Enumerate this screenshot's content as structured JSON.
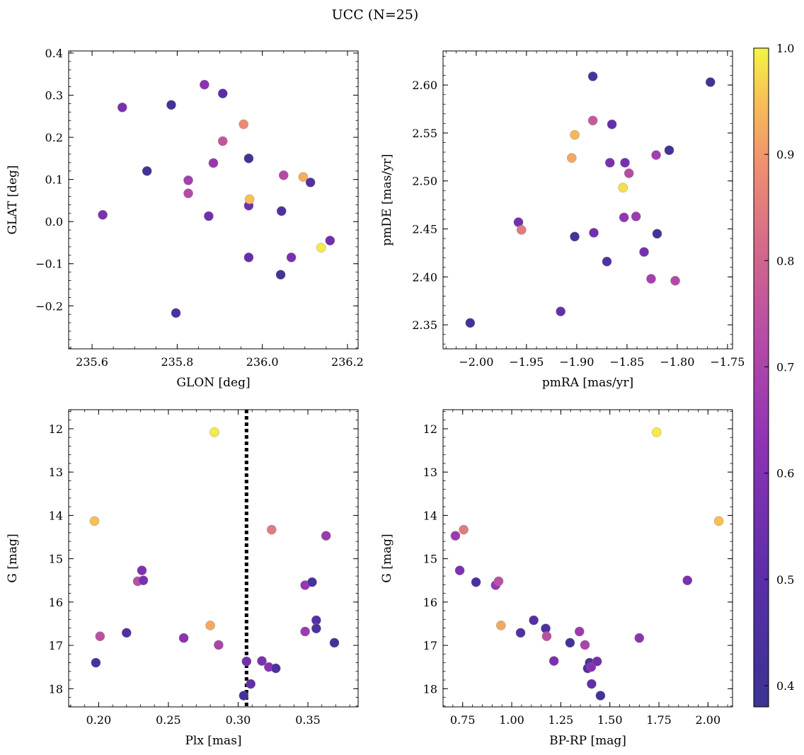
{
  "figure": {
    "title": "UCC (N=25)"
  },
  "colorbar": {
    "range": [
      0.38,
      1.0
    ],
    "ticks": [
      0.4,
      0.5,
      0.6,
      0.7,
      0.8,
      0.9,
      1.0
    ],
    "tick_labels": [
      "0.4",
      "0.5",
      "0.6",
      "0.7",
      "0.8",
      "0.9",
      "1.0"
    ],
    "colormap": "plasma",
    "stops": [
      [
        0.0,
        "#3b3492"
      ],
      [
        0.2,
        "#5b2ea8"
      ],
      [
        0.4,
        "#8e33b3"
      ],
      [
        0.55,
        "#b34aa8"
      ],
      [
        0.7,
        "#d46a8a"
      ],
      [
        0.82,
        "#ef8f70"
      ],
      [
        0.92,
        "#f8bf56"
      ],
      [
        1.0,
        "#f5f545"
      ]
    ]
  },
  "chart_data": [
    {
      "type": "scatter",
      "xlabel": "GLON [deg]",
      "ylabel": "GLAT [deg]",
      "xlim": [
        235.545,
        236.225
      ],
      "ylim": [
        -0.302,
        0.405
      ],
      "invert_y": false,
      "xticks": [
        235.6,
        235.8,
        236.0,
        236.2
      ],
      "xtick_labels": [
        "235.6",
        "235.8",
        "236.0",
        "236.2"
      ],
      "yticks": [
        -0.2,
        -0.1,
        0.0,
        0.1,
        0.2,
        0.3,
        0.4
      ],
      "ytick_labels": [
        "−0.2",
        "−0.1",
        "0.0",
        "0.1",
        "0.2",
        "0.3",
        "0.4"
      ],
      "x_minor_step": 0.05,
      "y_minor_step": 0.02,
      "points": [
        {
          "x": 235.625,
          "y": 0.016,
          "c": 0.58
        },
        {
          "x": 235.671,
          "y": 0.271,
          "c": 0.58
        },
        {
          "x": 235.729,
          "y": 0.12,
          "c": 0.41
        },
        {
          "x": 235.786,
          "y": 0.277,
          "c": 0.41
        },
        {
          "x": 235.797,
          "y": -0.217,
          "c": 0.45
        },
        {
          "x": 235.826,
          "y": 0.098,
          "c": 0.68
        },
        {
          "x": 235.826,
          "y": 0.067,
          "c": 0.72
        },
        {
          "x": 235.864,
          "y": 0.325,
          "c": 0.62
        },
        {
          "x": 235.874,
          "y": 0.013,
          "c": 0.55
        },
        {
          "x": 235.885,
          "y": 0.139,
          "c": 0.65
        },
        {
          "x": 235.907,
          "y": 0.304,
          "c": 0.5
        },
        {
          "x": 235.907,
          "y": 0.191,
          "c": 0.76
        },
        {
          "x": 235.956,
          "y": 0.231,
          "c": 0.88
        },
        {
          "x": 235.968,
          "y": 0.15,
          "c": 0.41
        },
        {
          "x": 235.968,
          "y": 0.038,
          "c": 0.56
        },
        {
          "x": 235.968,
          "y": -0.085,
          "c": 0.53
        },
        {
          "x": 235.97,
          "y": 0.053,
          "c": 0.95
        },
        {
          "x": 236.045,
          "y": 0.025,
          "c": 0.46
        },
        {
          "x": 236.043,
          "y": -0.126,
          "c": 0.41
        },
        {
          "x": 236.05,
          "y": 0.11,
          "c": 0.72
        },
        {
          "x": 236.068,
          "y": -0.085,
          "c": 0.58
        },
        {
          "x": 236.096,
          "y": 0.106,
          "c": 0.93
        },
        {
          "x": 236.113,
          "y": 0.093,
          "c": 0.47
        },
        {
          "x": 236.138,
          "y": -0.062,
          "c": 0.99
        },
        {
          "x": 236.159,
          "y": -0.045,
          "c": 0.56
        }
      ]
    },
    {
      "type": "scatter",
      "xlabel": "pmRA [mas/yr]",
      "ylabel": "pmDE [mas/yr]",
      "xlim": [
        -2.033,
        -1.745
      ],
      "ylim": [
        2.325,
        2.6355
      ],
      "invert_y": false,
      "xticks": [
        -2.0,
        -1.95,
        -1.9,
        -1.85,
        -1.8,
        -1.75
      ],
      "xtick_labels": [
        "−2.00",
        "−1.95",
        "−1.90",
        "−1.85",
        "−1.80",
        "−1.75"
      ],
      "yticks": [
        2.35,
        2.4,
        2.45,
        2.5,
        2.55,
        2.6
      ],
      "ytick_labels": [
        "2.35",
        "2.40",
        "2.45",
        "2.50",
        "2.55",
        "2.60"
      ],
      "x_minor_step": 0.01,
      "y_minor_step": 0.01,
      "points": [
        {
          "x": -2.006,
          "y": 2.352,
          "c": 0.42
        },
        {
          "x": -1.958,
          "y": 2.457,
          "c": 0.56
        },
        {
          "x": -1.955,
          "y": 2.449,
          "c": 0.85
        },
        {
          "x": -1.916,
          "y": 2.364,
          "c": 0.53
        },
        {
          "x": -1.905,
          "y": 2.524,
          "c": 0.92
        },
        {
          "x": -1.902,
          "y": 2.548,
          "c": 0.94
        },
        {
          "x": -1.902,
          "y": 2.442,
          "c": 0.42
        },
        {
          "x": -1.884,
          "y": 2.563,
          "c": 0.77
        },
        {
          "x": -1.884,
          "y": 2.609,
          "c": 0.44
        },
        {
          "x": -1.883,
          "y": 2.446,
          "c": 0.56
        },
        {
          "x": -1.87,
          "y": 2.416,
          "c": 0.47
        },
        {
          "x": -1.867,
          "y": 2.519,
          "c": 0.58
        },
        {
          "x": -1.865,
          "y": 2.559,
          "c": 0.52
        },
        {
          "x": -1.854,
          "y": 2.493,
          "c": 0.98
        },
        {
          "x": -1.853,
          "y": 2.462,
          "c": 0.64
        },
        {
          "x": -1.852,
          "y": 2.519,
          "c": 0.57
        },
        {
          "x": -1.848,
          "y": 2.508,
          "c": 0.73
        },
        {
          "x": -1.841,
          "y": 2.463,
          "c": 0.66
        },
        {
          "x": -1.833,
          "y": 2.426,
          "c": 0.57
        },
        {
          "x": -1.826,
          "y": 2.398,
          "c": 0.68
        },
        {
          "x": -1.821,
          "y": 2.527,
          "c": 0.68
        },
        {
          "x": -1.82,
          "y": 2.445,
          "c": 0.41
        },
        {
          "x": -1.808,
          "y": 2.532,
          "c": 0.42
        },
        {
          "x": -1.802,
          "y": 2.396,
          "c": 0.72
        },
        {
          "x": -1.767,
          "y": 2.603,
          "c": 0.41
        }
      ]
    },
    {
      "type": "scatter",
      "xlabel": "Plx [mas]",
      "ylabel": "G [mag]",
      "xlim": [
        0.1785,
        0.386
      ],
      "ylim": [
        18.42,
        11.56
      ],
      "invert_y": true,
      "xticks": [
        0.2,
        0.25,
        0.3,
        0.35
      ],
      "xtick_labels": [
        "0.20",
        "0.25",
        "0.30",
        "0.35"
      ],
      "yticks": [
        12,
        13,
        14,
        15,
        16,
        17,
        18
      ],
      "ytick_labels": [
        "12",
        "13",
        "14",
        "15",
        "16",
        "17",
        "18"
      ],
      "x_minor_step": 0.01,
      "y_minor_step": 0.2,
      "vline": {
        "x": 0.306,
        "style": "dotted"
      },
      "points": [
        {
          "x": 0.197,
          "y": 14.13,
          "c": 0.95
        },
        {
          "x": 0.198,
          "y": 17.4,
          "c": 0.43
        },
        {
          "x": 0.201,
          "y": 16.79,
          "c": 0.74
        },
        {
          "x": 0.22,
          "y": 16.71,
          "c": 0.47
        },
        {
          "x": 0.228,
          "y": 15.52,
          "c": 0.74
        },
        {
          "x": 0.231,
          "y": 15.27,
          "c": 0.59
        },
        {
          "x": 0.232,
          "y": 15.5,
          "c": 0.58
        },
        {
          "x": 0.261,
          "y": 16.83,
          "c": 0.62
        },
        {
          "x": 0.28,
          "y": 16.54,
          "c": 0.92
        },
        {
          "x": 0.283,
          "y": 12.08,
          "c": 0.99
        },
        {
          "x": 0.286,
          "y": 16.99,
          "c": 0.7
        },
        {
          "x": 0.304,
          "y": 18.16,
          "c": 0.42
        },
        {
          "x": 0.306,
          "y": 17.37,
          "c": 0.56
        },
        {
          "x": 0.309,
          "y": 17.89,
          "c": 0.52
        },
        {
          "x": 0.317,
          "y": 17.36,
          "c": 0.58
        },
        {
          "x": 0.322,
          "y": 17.5,
          "c": 0.61
        },
        {
          "x": 0.324,
          "y": 14.33,
          "c": 0.85
        },
        {
          "x": 0.327,
          "y": 17.53,
          "c": 0.45
        },
        {
          "x": 0.348,
          "y": 16.68,
          "c": 0.66
        },
        {
          "x": 0.348,
          "y": 15.61,
          "c": 0.65
        },
        {
          "x": 0.353,
          "y": 15.54,
          "c": 0.44
        },
        {
          "x": 0.356,
          "y": 16.42,
          "c": 0.48
        },
        {
          "x": 0.356,
          "y": 16.61,
          "c": 0.45
        },
        {
          "x": 0.363,
          "y": 14.47,
          "c": 0.66
        },
        {
          "x": 0.369,
          "y": 16.94,
          "c": 0.42
        }
      ]
    },
    {
      "type": "scatter",
      "xlabel": "BP-RP [mag]",
      "ylabel": "G [mag]",
      "xlim": [
        0.65,
        2.125
      ],
      "ylim": [
        18.42,
        11.56
      ],
      "invert_y": true,
      "xticks": [
        0.75,
        1.0,
        1.25,
        1.5,
        1.75,
        2.0
      ],
      "xtick_labels": [
        "0.75",
        "1.00",
        "1.25",
        "1.50",
        "1.75",
        "2.00"
      ],
      "yticks": [
        12,
        13,
        14,
        15,
        16,
        17,
        18
      ],
      "ytick_labels": [
        "12",
        "13",
        "14",
        "15",
        "16",
        "17",
        "18"
      ],
      "x_minor_step": 0.05,
      "y_minor_step": 0.2,
      "points": [
        {
          "x": 0.713,
          "y": 14.47,
          "c": 0.66
        },
        {
          "x": 0.735,
          "y": 15.27,
          "c": 0.59
        },
        {
          "x": 0.755,
          "y": 14.33,
          "c": 0.85
        },
        {
          "x": 0.818,
          "y": 15.54,
          "c": 0.44
        },
        {
          "x": 0.918,
          "y": 15.61,
          "c": 0.65
        },
        {
          "x": 0.933,
          "y": 15.52,
          "c": 0.74
        },
        {
          "x": 0.945,
          "y": 16.54,
          "c": 0.92
        },
        {
          "x": 1.045,
          "y": 16.71,
          "c": 0.47
        },
        {
          "x": 1.112,
          "y": 16.42,
          "c": 0.48
        },
        {
          "x": 1.173,
          "y": 16.61,
          "c": 0.45
        },
        {
          "x": 1.178,
          "y": 16.79,
          "c": 0.74
        },
        {
          "x": 1.215,
          "y": 17.36,
          "c": 0.58
        },
        {
          "x": 1.297,
          "y": 16.94,
          "c": 0.42
        },
        {
          "x": 1.345,
          "y": 16.68,
          "c": 0.66
        },
        {
          "x": 1.373,
          "y": 16.99,
          "c": 0.7
        },
        {
          "x": 1.387,
          "y": 17.53,
          "c": 0.45
        },
        {
          "x": 1.397,
          "y": 17.4,
          "c": 0.43
        },
        {
          "x": 1.405,
          "y": 17.5,
          "c": 0.61
        },
        {
          "x": 1.407,
          "y": 17.89,
          "c": 0.52
        },
        {
          "x": 1.435,
          "y": 17.37,
          "c": 0.56
        },
        {
          "x": 1.452,
          "y": 18.16,
          "c": 0.42
        },
        {
          "x": 1.65,
          "y": 16.83,
          "c": 0.62
        },
        {
          "x": 1.738,
          "y": 12.08,
          "c": 0.99
        },
        {
          "x": 1.895,
          "y": 15.5,
          "c": 0.58
        },
        {
          "x": 2.055,
          "y": 14.13,
          "c": 0.95
        }
      ]
    }
  ]
}
